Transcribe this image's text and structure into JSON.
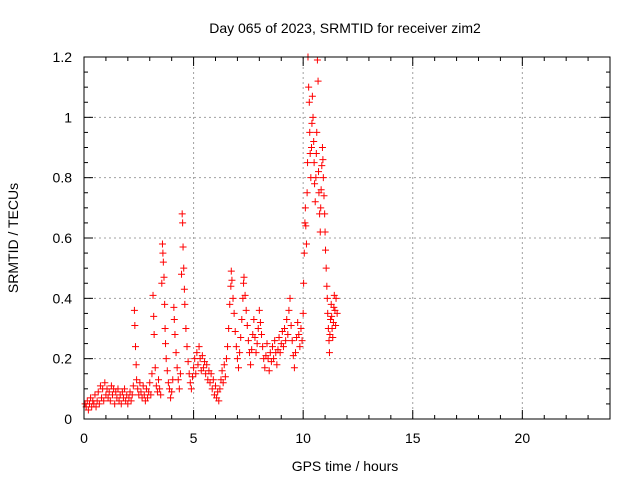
{
  "chart_data": {
    "type": "scatter",
    "title": "Day 065 of 2023, SRMTID for receiver zim2",
    "xlabel": "GPS time / hours",
    "ylabel": "SRMTID / TECUs",
    "xlim": [
      0,
      24
    ],
    "ylim": [
      0,
      1.2
    ],
    "x_ticks": [
      0,
      5,
      10,
      15,
      20
    ],
    "x_tick_labels": [
      "0",
      "5",
      "10",
      "15",
      "20"
    ],
    "y_ticks": [
      0,
      0.2,
      0.4,
      0.6,
      0.8,
      1.0,
      1.2
    ],
    "y_tick_labels": [
      "0",
      "0.2",
      "0.4",
      "0.6",
      "0.8",
      "1",
      "1.2"
    ],
    "grid": true,
    "marker": "+",
    "color": "#ff0000",
    "series": [
      {
        "name": "SRMTID",
        "points": [
          [
            0.05,
            0.05
          ],
          [
            0.1,
            0.04
          ],
          [
            0.15,
            0.06
          ],
          [
            0.2,
            0.03
          ],
          [
            0.25,
            0.05
          ],
          [
            0.3,
            0.07
          ],
          [
            0.35,
            0.04
          ],
          [
            0.4,
            0.06
          ],
          [
            0.45,
            0.05
          ],
          [
            0.5,
            0.08
          ],
          [
            0.55,
            0.04
          ],
          [
            0.6,
            0.06
          ],
          [
            0.65,
            0.09
          ],
          [
            0.7,
            0.05
          ],
          [
            0.75,
            0.11
          ],
          [
            0.8,
            0.07
          ],
          [
            0.85,
            0.1
          ],
          [
            0.9,
            0.06
          ],
          [
            0.95,
            0.12
          ],
          [
            1.0,
            0.08
          ],
          [
            1.05,
            0.1
          ],
          [
            1.1,
            0.07
          ],
          [
            1.15,
            0.09
          ],
          [
            1.2,
            0.06
          ],
          [
            1.25,
            0.11
          ],
          [
            1.3,
            0.08
          ],
          [
            1.35,
            0.1
          ],
          [
            1.4,
            0.05
          ],
          [
            1.45,
            0.09
          ],
          [
            1.5,
            0.07
          ],
          [
            1.55,
            0.1
          ],
          [
            1.6,
            0.06
          ],
          [
            1.65,
            0.08
          ],
          [
            1.7,
            0.05
          ],
          [
            1.75,
            0.09
          ],
          [
            1.8,
            0.07
          ],
          [
            1.85,
            0.1
          ],
          [
            1.9,
            0.06
          ],
          [
            1.95,
            0.08
          ],
          [
            2.0,
            0.05
          ],
          [
            2.05,
            0.07
          ],
          [
            2.1,
            0.09
          ],
          [
            2.15,
            0.06
          ],
          [
            2.2,
            0.08
          ],
          [
            2.25,
            0.11
          ],
          [
            2.3,
            0.36
          ],
          [
            2.32,
            0.31
          ],
          [
            2.35,
            0.24
          ],
          [
            2.38,
            0.18
          ],
          [
            2.4,
            0.13
          ],
          [
            2.45,
            0.1
          ],
          [
            2.5,
            0.08
          ],
          [
            2.55,
            0.12
          ],
          [
            2.6,
            0.09
          ],
          [
            2.65,
            0.07
          ],
          [
            2.7,
            0.11
          ],
          [
            2.75,
            0.08
          ],
          [
            2.8,
            0.06
          ],
          [
            2.85,
            0.1
          ],
          [
            2.9,
            0.07
          ],
          [
            2.95,
            0.09
          ],
          [
            3.0,
            0.12
          ],
          [
            3.05,
            0.08
          ],
          [
            3.1,
            0.15
          ],
          [
            3.15,
            0.41
          ],
          [
            3.18,
            0.34
          ],
          [
            3.2,
            0.28
          ],
          [
            3.25,
            0.17
          ],
          [
            3.3,
            0.11
          ],
          [
            3.35,
            0.09
          ],
          [
            3.4,
            0.13
          ],
          [
            3.45,
            0.1
          ],
          [
            3.5,
            0.08
          ],
          [
            3.55,
            0.45
          ],
          [
            3.58,
            0.58
          ],
          [
            3.6,
            0.55
          ],
          [
            3.62,
            0.52
          ],
          [
            3.65,
            0.47
          ],
          [
            3.68,
            0.38
          ],
          [
            3.7,
            0.3
          ],
          [
            3.72,
            0.25
          ],
          [
            3.75,
            0.2
          ],
          [
            3.8,
            0.16
          ],
          [
            3.85,
            0.12
          ],
          [
            3.9,
            0.1
          ],
          [
            3.95,
            0.07
          ],
          [
            4.0,
            0.09
          ],
          [
            4.05,
            0.13
          ],
          [
            4.1,
            0.37
          ],
          [
            4.12,
            0.33
          ],
          [
            4.15,
            0.28
          ],
          [
            4.2,
            0.22
          ],
          [
            4.25,
            0.17
          ],
          [
            4.3,
            0.13
          ],
          [
            4.35,
            0.1
          ],
          [
            4.4,
            0.15
          ],
          [
            4.45,
            0.48
          ],
          [
            4.48,
            0.68
          ],
          [
            4.5,
            0.65
          ],
          [
            4.52,
            0.57
          ],
          [
            4.55,
            0.5
          ],
          [
            4.58,
            0.43
          ],
          [
            4.6,
            0.38
          ],
          [
            4.65,
            0.3
          ],
          [
            4.7,
            0.24
          ],
          [
            4.75,
            0.19
          ],
          [
            4.8,
            0.15
          ],
          [
            4.85,
            0.12
          ],
          [
            4.9,
            0.1
          ],
          [
            4.95,
            0.14
          ],
          [
            5.0,
            0.17
          ],
          [
            5.05,
            0.2
          ],
          [
            5.1,
            0.15
          ],
          [
            5.15,
            0.22
          ],
          [
            5.2,
            0.18
          ],
          [
            5.25,
            0.24
          ],
          [
            5.3,
            0.2
          ],
          [
            5.35,
            0.16
          ],
          [
            5.4,
            0.21
          ],
          [
            5.45,
            0.17
          ],
          [
            5.5,
            0.19
          ],
          [
            5.55,
            0.15
          ],
          [
            5.6,
            0.18
          ],
          [
            5.65,
            0.13
          ],
          [
            5.7,
            0.16
          ],
          [
            5.75,
            0.12
          ],
          [
            5.8,
            0.15
          ],
          [
            5.85,
            0.1
          ],
          [
            5.9,
            0.13
          ],
          [
            5.95,
            0.08
          ],
          [
            6.0,
            0.11
          ],
          [
            6.05,
            0.07
          ],
          [
            6.1,
            0.09
          ],
          [
            6.15,
            0.06
          ],
          [
            6.2,
            0.1
          ],
          [
            6.25,
            0.13
          ],
          [
            6.3,
            0.16
          ],
          [
            6.35,
            0.12
          ],
          [
            6.4,
            0.18
          ],
          [
            6.45,
            0.14
          ],
          [
            6.5,
            0.2
          ],
          [
            6.55,
            0.24
          ],
          [
            6.6,
            0.3
          ],
          [
            6.65,
            0.38
          ],
          [
            6.7,
            0.44
          ],
          [
            6.72,
            0.49
          ],
          [
            6.75,
            0.46
          ],
          [
            6.8,
            0.4
          ],
          [
            6.85,
            0.35
          ],
          [
            6.9,
            0.29
          ],
          [
            6.95,
            0.24
          ],
          [
            7.0,
            0.2
          ],
          [
            7.05,
            0.17
          ],
          [
            7.1,
            0.22
          ],
          [
            7.15,
            0.27
          ],
          [
            7.2,
            0.33
          ],
          [
            7.25,
            0.4
          ],
          [
            7.28,
            0.45
          ],
          [
            7.3,
            0.47
          ],
          [
            7.35,
            0.41
          ],
          [
            7.4,
            0.36
          ],
          [
            7.45,
            0.31
          ],
          [
            7.5,
            0.26
          ],
          [
            7.55,
            0.22
          ],
          [
            7.6,
            0.18
          ],
          [
            7.65,
            0.23
          ],
          [
            7.7,
            0.28
          ],
          [
            7.75,
            0.33
          ],
          [
            7.8,
            0.27
          ],
          [
            7.85,
            0.22
          ],
          [
            7.9,
            0.25
          ],
          [
            7.95,
            0.3
          ],
          [
            8.0,
            0.36
          ],
          [
            8.05,
            0.32
          ],
          [
            8.1,
            0.28
          ],
          [
            8.15,
            0.24
          ],
          [
            8.2,
            0.2
          ],
          [
            8.25,
            0.17
          ],
          [
            8.3,
            0.21
          ],
          [
            8.35,
            0.25
          ],
          [
            8.4,
            0.2
          ],
          [
            8.45,
            0.16
          ],
          [
            8.5,
            0.22
          ],
          [
            8.55,
            0.19
          ],
          [
            8.6,
            0.24
          ],
          [
            8.65,
            0.2
          ],
          [
            8.7,
            0.26
          ],
          [
            8.75,
            0.22
          ],
          [
            8.8,
            0.18
          ],
          [
            8.85,
            0.23
          ],
          [
            8.9,
            0.27
          ],
          [
            8.95,
            0.22
          ],
          [
            9.0,
            0.25
          ],
          [
            9.05,
            0.29
          ],
          [
            9.1,
            0.24
          ],
          [
            9.15,
            0.3
          ],
          [
            9.2,
            0.26
          ],
          [
            9.25,
            0.33
          ],
          [
            9.3,
            0.28
          ],
          [
            9.35,
            0.36
          ],
          [
            9.4,
            0.4
          ],
          [
            9.45,
            0.31
          ],
          [
            9.5,
            0.26
          ],
          [
            9.55,
            0.21
          ],
          [
            9.6,
            0.17
          ],
          [
            9.65,
            0.22
          ],
          [
            9.7,
            0.27
          ],
          [
            9.75,
            0.32
          ],
          [
            9.8,
            0.28
          ],
          [
            9.85,
            0.24
          ],
          [
            9.9,
            0.3
          ],
          [
            9.95,
            0.26
          ],
          [
            10.0,
            0.35
          ],
          [
            10.02,
            0.45
          ],
          [
            10.05,
            0.55
          ],
          [
            10.08,
            0.65
          ],
          [
            10.1,
            0.7
          ],
          [
            10.12,
            0.64
          ],
          [
            10.15,
            0.58
          ],
          [
            10.18,
            0.75
          ],
          [
            10.2,
            0.85
          ],
          [
            10.22,
            1.2
          ],
          [
            10.25,
            1.1
          ],
          [
            10.28,
            1.05
          ],
          [
            10.3,
            0.95
          ],
          [
            10.32,
            0.88
          ],
          [
            10.35,
            0.8
          ],
          [
            10.38,
            0.9
          ],
          [
            10.4,
            0.98
          ],
          [
            10.42,
            1.07
          ],
          [
            10.45,
            1.0
          ],
          [
            10.48,
            0.92
          ],
          [
            10.5,
            0.85
          ],
          [
            10.52,
            0.78
          ],
          [
            10.55,
            0.72
          ],
          [
            10.58,
            0.8
          ],
          [
            10.6,
            0.88
          ],
          [
            10.62,
            0.95
          ],
          [
            10.65,
            1.19
          ],
          [
            10.68,
            1.12
          ],
          [
            10.7,
            0.82
          ],
          [
            10.72,
            0.75
          ],
          [
            10.75,
            0.68
          ],
          [
            10.78,
            0.62
          ],
          [
            10.8,
            0.7
          ],
          [
            10.82,
            0.76
          ],
          [
            10.85,
            0.84
          ],
          [
            10.88,
            0.9
          ],
          [
            10.9,
            0.86
          ],
          [
            10.92,
            0.8
          ],
          [
            10.95,
            0.74
          ],
          [
            10.98,
            0.68
          ],
          [
            11.0,
            0.62
          ],
          [
            11.02,
            0.56
          ],
          [
            11.05,
            0.5
          ],
          [
            11.08,
            0.44
          ],
          [
            11.1,
            0.4
          ],
          [
            11.12,
            0.35
          ],
          [
            11.15,
            0.3
          ],
          [
            11.18,
            0.26
          ],
          [
            11.2,
            0.22
          ],
          [
            11.22,
            0.28
          ],
          [
            11.25,
            0.33
          ],
          [
            11.28,
            0.38
          ],
          [
            11.3,
            0.34
          ],
          [
            11.32,
            0.3
          ],
          [
            11.35,
            0.27
          ],
          [
            11.38,
            0.32
          ],
          [
            11.4,
            0.37
          ],
          [
            11.42,
            0.41
          ],
          [
            11.45,
            0.36
          ],
          [
            11.48,
            0.31
          ],
          [
            11.5,
            0.4
          ],
          [
            11.55,
            0.35
          ]
        ]
      }
    ]
  }
}
